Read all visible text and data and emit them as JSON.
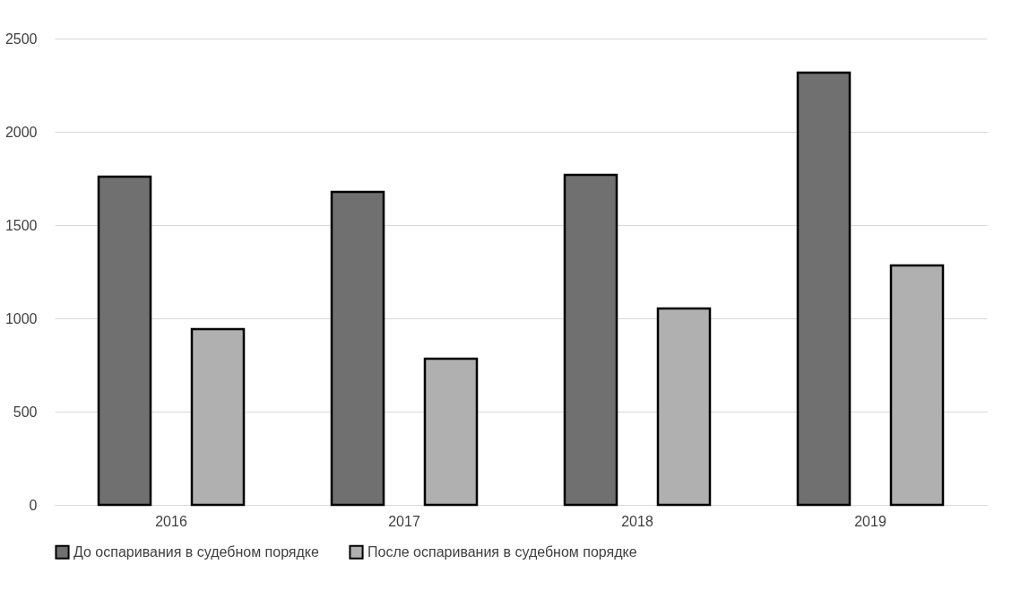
{
  "chart_data": {
    "type": "bar",
    "categories": [
      "2016",
      "2017",
      "2018",
      "2019"
    ],
    "series": [
      {
        "name": "До оспаривания в судебном порядке",
        "color": "#707070",
        "values": [
          1760,
          1678,
          1769,
          2317
        ]
      },
      {
        "name": "После оспаривания в судебном порядке",
        "color": "#b0b0b0",
        "values": [
          942,
          784,
          1053,
          1284
        ]
      }
    ],
    "ylim": [
      0,
      2500
    ],
    "yticks": [
      0,
      500,
      1000,
      1500,
      2000,
      2500
    ],
    "grid": "y",
    "legend": "bottom"
  }
}
